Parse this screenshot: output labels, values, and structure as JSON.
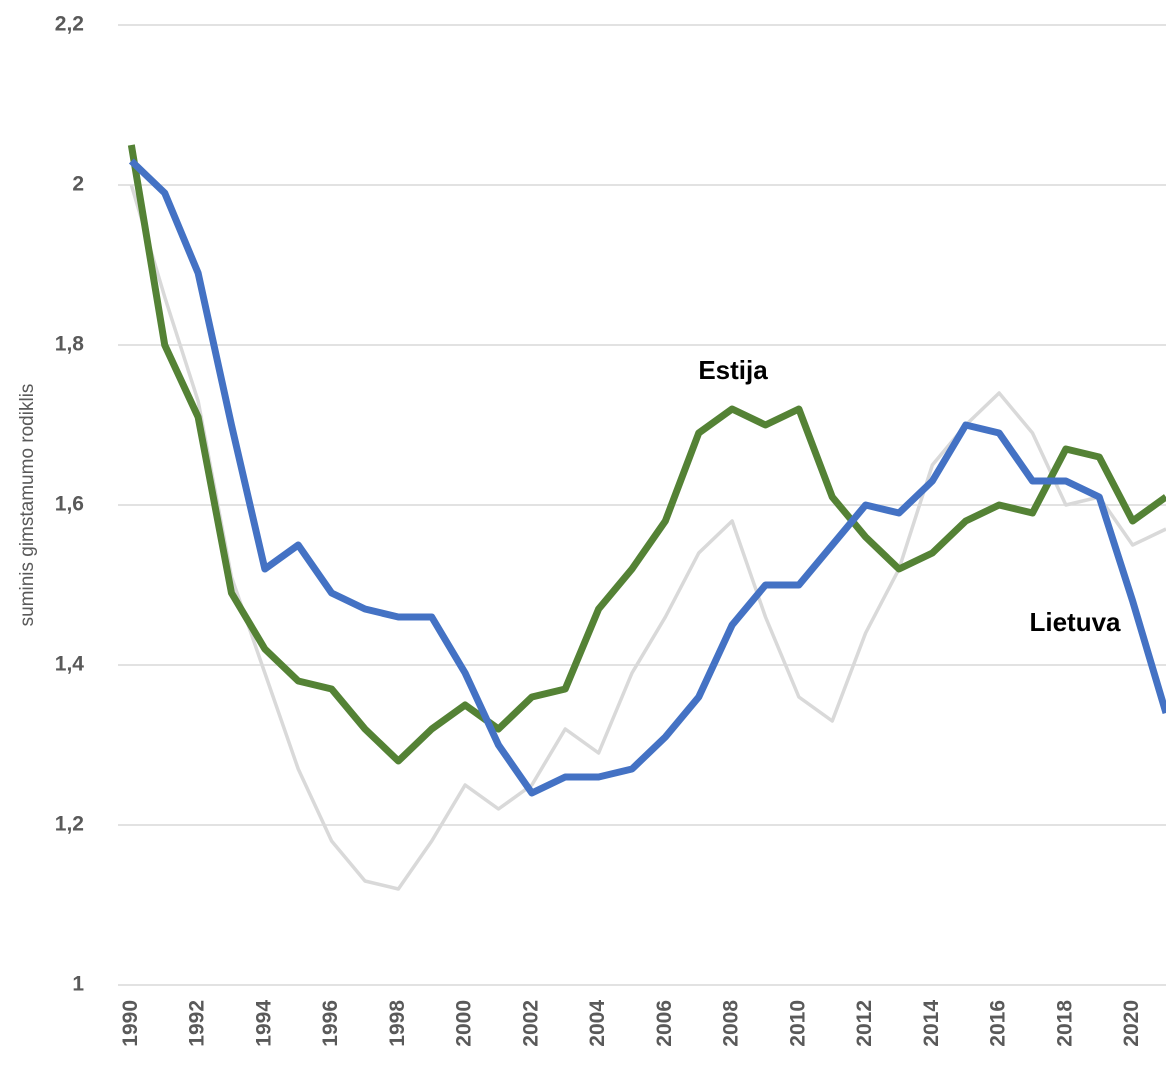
{
  "chart_data": {
    "type": "line",
    "ylabel": "suminis gimstamumo rodiklis",
    "x": [
      1990,
      1991,
      1992,
      1993,
      1994,
      1995,
      1996,
      1997,
      1998,
      1999,
      2000,
      2001,
      2002,
      2003,
      2004,
      2005,
      2006,
      2007,
      2008,
      2009,
      2010,
      2011,
      2012,
      2013,
      2014,
      2015,
      2016,
      2017,
      2018,
      2019,
      2020,
      2021
    ],
    "series": [
      {
        "color": "#d9d9d9",
        "values": [
          2.0,
          1.86,
          1.73,
          1.51,
          1.39,
          1.27,
          1.18,
          1.13,
          1.12,
          1.18,
          1.25,
          1.22,
          1.25,
          1.32,
          1.29,
          1.39,
          1.46,
          1.54,
          1.58,
          1.46,
          1.36,
          1.33,
          1.44,
          1.52,
          1.65,
          1.7,
          1.74,
          1.69,
          1.6,
          1.61,
          1.55,
          1.57
        ]
      },
      {
        "name": "Estija",
        "color": "#548235",
        "values": [
          2.05,
          1.8,
          1.71,
          1.49,
          1.42,
          1.38,
          1.37,
          1.32,
          1.28,
          1.32,
          1.35,
          1.32,
          1.36,
          1.37,
          1.47,
          1.52,
          1.58,
          1.69,
          1.72,
          1.7,
          1.72,
          1.61,
          1.56,
          1.52,
          1.54,
          1.58,
          1.6,
          1.59,
          1.67,
          1.66,
          1.58,
          1.61
        ]
      },
      {
        "name": "Lietuva",
        "color": "#4472c4",
        "values": [
          2.03,
          1.99,
          1.89,
          1.7,
          1.52,
          1.55,
          1.49,
          1.47,
          1.46,
          1.46,
          1.39,
          1.3,
          1.24,
          1.26,
          1.26,
          1.27,
          1.31,
          1.36,
          1.45,
          1.5,
          1.5,
          1.55,
          1.6,
          1.59,
          1.63,
          1.7,
          1.69,
          1.63,
          1.63,
          1.61,
          1.48,
          1.34
        ]
      }
    ],
    "xlim": [
      1989.6,
      2021
    ],
    "xticks": [
      1990,
      1992,
      1994,
      1996,
      1998,
      2000,
      2002,
      2004,
      2006,
      2008,
      2010,
      2012,
      2014,
      2016,
      2018,
      2020
    ],
    "ylim": [
      1,
      2.2
    ],
    "yticks": [
      1,
      {
        "value": 1.2,
        "label": "1,2"
      },
      {
        "value": 1.4,
        "label": "1,4"
      },
      {
        "value": 1.6,
        "label": "1,6"
      },
      {
        "value": 1.8,
        "label": "1,8"
      },
      2,
      {
        "value": 2.2,
        "label": "2,2"
      }
    ],
    "grid": true
  }
}
